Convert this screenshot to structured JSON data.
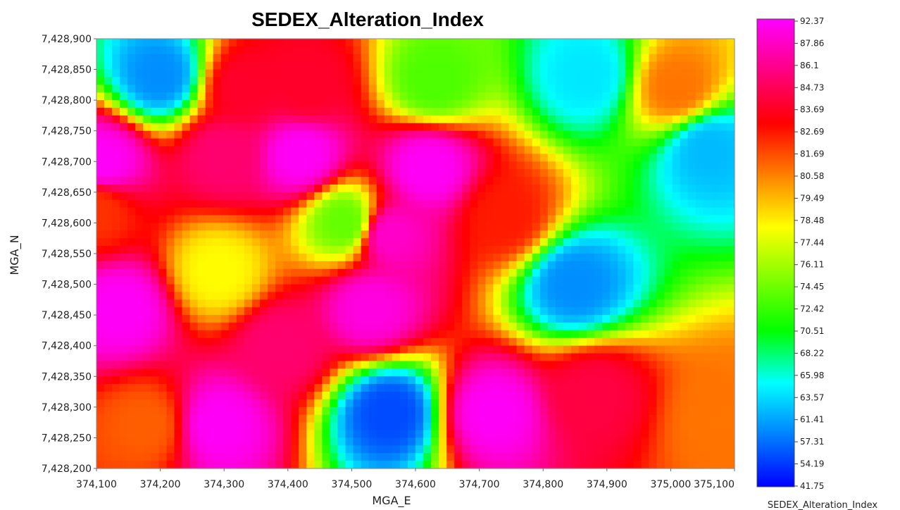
{
  "chart_data": {
    "type": "heatmap",
    "title": "SEDEX_Alteration_Index",
    "xlabel": "MGA_E",
    "ylabel": "MGA_N",
    "xlim": [
      374100,
      375100
    ],
    "ylim": [
      7428200,
      7428900
    ],
    "x_ticks": [
      "374,100",
      "374,200",
      "374,300",
      "374,400",
      "374,500",
      "374,600",
      "374,700",
      "374,800",
      "374,900",
      "375,000",
      "375,100"
    ],
    "y_ticks": [
      "7,428,900",
      "7,428,850",
      "7,428,800",
      "7,428,750",
      "7,428,700",
      "7,428,650",
      "7,428,600",
      "7,428,550",
      "7,428,500",
      "7,428,450",
      "7,428,400",
      "7,428,350",
      "7,428,300",
      "7,428,250",
      "7,428,200"
    ],
    "colorbar": {
      "title": "SEDEX_Alteration_Index",
      "labels": [
        "92.37",
        "87.86",
        "86.1",
        "84.73",
        "83.69",
        "82.69",
        "81.69",
        "80.58",
        "79.49",
        "78.48",
        "77.44",
        "76.11",
        "74.45",
        "72.42",
        "70.51",
        "68.22",
        "65.98",
        "63.57",
        "61.41",
        "57.31",
        "54.19",
        "41.75"
      ],
      "colors_top_to_bottom": [
        "#ff00ff",
        "#ff0080",
        "#ff0000",
        "#ff8000",
        "#ffff00",
        "#80ff00",
        "#00ff00",
        "#00ffff",
        "#0080ff",
        "#0000ff"
      ]
    },
    "color_scale_min": 41.75,
    "color_scale_max": 92.37,
    "grid": false,
    "hotspots": [
      {
        "x": 374110,
        "y": 7428700,
        "value": 92
      },
      {
        "x": 374300,
        "y": 7428710,
        "value": 86
      },
      {
        "x": 374420,
        "y": 7428710,
        "value": 92
      },
      {
        "x": 374620,
        "y": 7428690,
        "value": 92
      },
      {
        "x": 374560,
        "y": 7428580,
        "value": 90
      },
      {
        "x": 374530,
        "y": 7428460,
        "value": 91
      },
      {
        "x": 374140,
        "y": 7428460,
        "value": 92
      },
      {
        "x": 374290,
        "y": 7428270,
        "value": 92
      },
      {
        "x": 374390,
        "y": 7428400,
        "value": 86
      },
      {
        "x": 374720,
        "y": 7428290,
        "value": 92
      },
      {
        "x": 374880,
        "y": 7428320,
        "value": 84
      },
      {
        "x": 374330,
        "y": 7428820,
        "value": 83
      },
      {
        "x": 374430,
        "y": 7428820,
        "value": 83
      },
      {
        "x": 374560,
        "y": 7428290,
        "value": 45
      },
      {
        "x": 374850,
        "y": 7428500,
        "value": 48
      },
      {
        "x": 374200,
        "y": 7428840,
        "value": 48
      },
      {
        "x": 375060,
        "y": 7428720,
        "value": 50
      },
      {
        "x": 374870,
        "y": 7428840,
        "value": 52
      },
      {
        "x": 374630,
        "y": 7428830,
        "value": 62
      },
      {
        "x": 374490,
        "y": 7428600,
        "value": 63
      },
      {
        "x": 374290,
        "y": 7428520,
        "value": 70
      },
      {
        "x": 375010,
        "y": 7428820,
        "value": 76
      },
      {
        "x": 374180,
        "y": 7428270,
        "value": 77
      },
      {
        "x": 374740,
        "y": 7428610,
        "value": 80
      },
      {
        "x": 374100,
        "y": 7428620,
        "value": 79
      },
      {
        "x": 375080,
        "y": 7428280,
        "value": 76
      }
    ]
  }
}
